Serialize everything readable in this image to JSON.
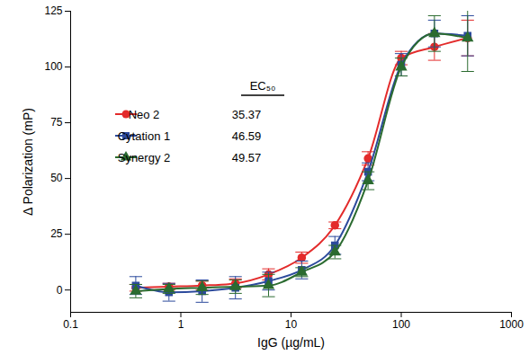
{
  "chart_data": {
    "type": "line",
    "x_label": "IgG (µg/mL)",
    "y_label": "Δ Polarization (mP)",
    "log": "x",
    "legend": "left",
    "legend_title": "EC₅₀",
    "xlim": [
      0.1,
      1000
    ],
    "xticks": [
      0.1,
      1,
      10,
      100,
      1000
    ],
    "ylim": [
      -10,
      125
    ],
    "yticks": [
      0,
      25,
      50,
      75,
      100,
      125
    ],
    "x": [
      0.39,
      0.78,
      1.56,
      3.13,
      6.25,
      12.5,
      25,
      50,
      100,
      200,
      400
    ],
    "series": [
      {
        "name": "Neo 2",
        "color": "#e32b2b",
        "marker": "circle",
        "ec50": 35.37,
        "values": [
          1,
          1.5,
          2,
          3,
          7,
          14.5,
          29,
          59,
          104,
          109,
          113
        ],
        "errors": [
          1.5,
          1.5,
          2,
          2,
          2.5,
          2.5,
          1.5,
          3,
          3,
          6,
          8
        ]
      },
      {
        "name": "Cytation 1",
        "color": "#2c4a9c",
        "marker": "square",
        "ec50": 46.59,
        "values": [
          2,
          -1,
          -0.5,
          1,
          4,
          9,
          20,
          53,
          101,
          115,
          114
        ],
        "errors": [
          4,
          4,
          5,
          5,
          4,
          4,
          4,
          4,
          5,
          6,
          9
        ]
      },
      {
        "name": "Synergy 2",
        "color": "#2b6b30",
        "marker": "triangle",
        "ec50": 49.57,
        "values": [
          -0.5,
          0.5,
          1,
          1.5,
          2,
          8,
          17,
          49,
          100,
          115,
          113
        ],
        "errors": [
          3,
          2,
          3,
          3,
          5,
          2,
          3,
          4,
          4,
          8,
          15
        ]
      }
    ]
  }
}
